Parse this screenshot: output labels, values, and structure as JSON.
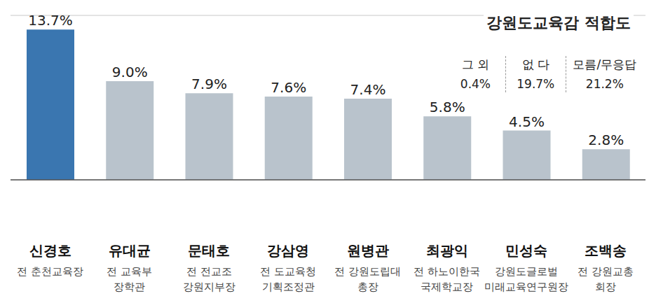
{
  "chart_data": {
    "type": "bar",
    "title": "강원도교육감 적합도",
    "categories": [
      "신경호",
      "유대균",
      "문태호",
      "강삼영",
      "원병관",
      "최광익",
      "민성숙",
      "조백송"
    ],
    "subtitles": [
      [
        "전 춘천교육장"
      ],
      [
        "전 교육부",
        "장학관"
      ],
      [
        "전 전교조",
        "강원지부장"
      ],
      [
        "전 도교육청",
        "기획조정관"
      ],
      [
        "전 강원도립대",
        "총장"
      ],
      [
        "전 하노이한국",
        "국제학교장"
      ],
      [
        "강원도글로벌",
        "미래교육연구원장"
      ],
      [
        "전 강원교총",
        "회장"
      ]
    ],
    "values": [
      13.7,
      9.0,
      7.9,
      7.6,
      7.4,
      5.8,
      4.5,
      2.8
    ],
    "value_labels": [
      "13.7%",
      "9.0%",
      "7.9%",
      "7.6%",
      "7.4%",
      "5.8%",
      "4.5%",
      "2.8%"
    ],
    "colors": [
      "#3a76b0",
      "#b9c3cc",
      "#b9c3cc",
      "#b9c3cc",
      "#b9c3cc",
      "#b9c3cc",
      "#b9c3cc",
      "#b9c3cc"
    ],
    "ylim": [
      0,
      15
    ],
    "yticks": [
      0,
      3,
      6,
      9,
      12,
      15
    ],
    "grid": true,
    "data_labels": true,
    "tick_labels": "x",
    "extra": [
      {
        "label": "그 외",
        "value": 0.4,
        "value_label": "0.4%"
      },
      {
        "label": "없 다",
        "value": 19.7,
        "value_label": "19.7%"
      },
      {
        "label": "모름/무응답",
        "value": 21.2,
        "value_label": "21.2%"
      }
    ]
  }
}
